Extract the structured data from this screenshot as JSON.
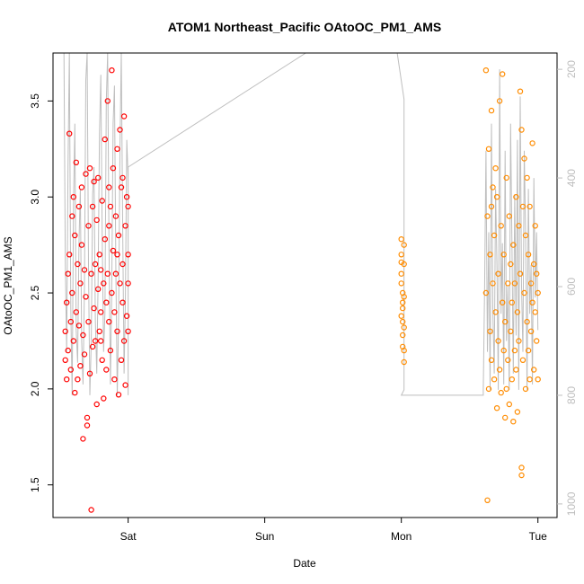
{
  "chart_data": {
    "type": "scatter",
    "title": "ATOM1 Northeast_Pacific OAtoOC_PM1_AMS",
    "xlabel": "Date",
    "ylabel": "OAtoOC_PM1_AMS",
    "x_tick_labels": [
      "Sat",
      "Sun",
      "Mon",
      "Tue"
    ],
    "x_tick_values": [
      1.0,
      2.0,
      3.0,
      4.0
    ],
    "xlim": [
      0.45,
      4.14
    ],
    "ylim": [
      1.33,
      3.75
    ],
    "y_ticks": [
      "1.5",
      "2.0",
      "2.5",
      "3.0",
      "3.5"
    ],
    "y_tick_values": [
      1.5,
      2.0,
      2.5,
      3.0,
      3.5
    ],
    "y2_ticks": [
      "200",
      "400",
      "600",
      "800",
      "1000"
    ],
    "y2_tick_values": [
      200,
      400,
      600,
      800,
      1000
    ],
    "y2lim": [
      1025,
      170
    ],
    "grid": false,
    "colors": {
      "red": "#ff0000",
      "orange": "#ff8c00",
      "altitude": "#bebebe",
      "axis": "#000000"
    },
    "series": [
      {
        "color": "#ff0000",
        "points": [
          [
            0.54,
            2.15
          ],
          [
            0.54,
            2.3
          ],
          [
            0.55,
            2.45
          ],
          [
            0.55,
            2.05
          ],
          [
            0.56,
            2.6
          ],
          [
            0.56,
            2.2
          ],
          [
            0.57,
            2.7
          ],
          [
            0.57,
            3.33
          ],
          [
            0.58,
            2.35
          ],
          [
            0.58,
            2.1
          ],
          [
            0.59,
            2.9
          ],
          [
            0.59,
            2.5
          ],
          [
            0.6,
            2.25
          ],
          [
            0.6,
            3.0
          ],
          [
            0.61,
            2.8
          ],
          [
            0.61,
            1.98
          ],
          [
            0.62,
            2.4
          ],
          [
            0.62,
            3.18
          ],
          [
            0.63,
            2.65
          ],
          [
            0.63,
            2.05
          ],
          [
            0.64,
            2.33
          ],
          [
            0.64,
            2.95
          ],
          [
            0.65,
            2.55
          ],
          [
            0.65,
            2.12
          ],
          [
            0.66,
            2.75
          ],
          [
            0.66,
            3.05
          ],
          [
            0.67,
            2.28
          ],
          [
            0.67,
            1.74
          ],
          [
            0.68,
            2.62
          ],
          [
            0.68,
            2.18
          ],
          [
            0.69,
            3.12
          ],
          [
            0.69,
            2.48
          ],
          [
            0.7,
            1.85
          ],
          [
            0.7,
            1.81
          ],
          [
            0.71,
            2.85
          ],
          [
            0.71,
            2.35
          ],
          [
            0.72,
            3.15
          ],
          [
            0.72,
            2.08
          ],
          [
            0.73,
            1.37
          ],
          [
            0.73,
            2.6
          ],
          [
            0.74,
            2.22
          ],
          [
            0.74,
            2.95
          ],
          [
            0.75,
            2.42
          ],
          [
            0.75,
            3.08
          ],
          [
            0.76,
            2.65
          ],
          [
            0.76,
            2.25
          ],
          [
            0.77,
            1.92
          ],
          [
            0.77,
            2.88
          ],
          [
            0.78,
            2.52
          ],
          [
            0.78,
            3.1
          ],
          [
            0.79,
            2.7
          ],
          [
            0.79,
            2.3
          ],
          [
            0.8,
            2.4
          ],
          [
            0.8,
            2.62
          ],
          [
            0.81,
            2.98
          ],
          [
            0.81,
            2.15
          ],
          [
            0.82,
            1.95
          ],
          [
            0.82,
            2.55
          ],
          [
            0.83,
            2.78
          ],
          [
            0.83,
            3.3
          ],
          [
            0.84,
            2.45
          ],
          [
            0.84,
            2.1
          ],
          [
            0.85,
            3.5
          ],
          [
            0.85,
            2.6
          ],
          [
            0.86,
            2.35
          ],
          [
            0.86,
            2.85
          ],
          [
            0.87,
            2.95
          ],
          [
            0.87,
            2.2
          ],
          [
            0.88,
            3.66
          ],
          [
            0.88,
            2.5
          ],
          [
            0.89,
            2.72
          ],
          [
            0.89,
            3.15
          ],
          [
            0.9,
            2.05
          ],
          [
            0.9,
            2.4
          ],
          [
            0.91,
            2.9
          ],
          [
            0.91,
            2.6
          ],
          [
            0.92,
            3.25
          ],
          [
            0.92,
            2.3
          ],
          [
            0.93,
            1.97
          ],
          [
            0.93,
            2.8
          ],
          [
            0.94,
            3.35
          ],
          [
            0.94,
            2.55
          ],
          [
            0.95,
            3.05
          ],
          [
            0.95,
            2.15
          ],
          [
            0.96,
            2.65
          ],
          [
            0.96,
            2.45
          ],
          [
            0.97,
            3.42
          ],
          [
            0.97,
            2.25
          ],
          [
            0.98,
            2.85
          ],
          [
            0.98,
            2.02
          ],
          [
            0.99,
            3.0
          ],
          [
            0.99,
            2.38
          ],
          [
            1.0,
            2.7
          ],
          [
            1.0,
            2.95
          ],
          [
            1.0,
            2.3
          ],
          [
            1.0,
            2.55
          ],
          [
            0.96,
            3.1
          ],
          [
            0.92,
            2.7
          ],
          [
            0.86,
            3.05
          ],
          [
            0.8,
            2.25
          ]
        ]
      },
      {
        "color": "#ff8c00",
        "points": [
          [
            3.0,
            2.78
          ],
          [
            3.0,
            2.7
          ],
          [
            3.0,
            2.6
          ],
          [
            3.01,
            2.5
          ],
          [
            3.01,
            2.42
          ],
          [
            3.01,
            2.35
          ],
          [
            3.01,
            2.28
          ],
          [
            3.02,
            2.2
          ],
          [
            3.02,
            2.14
          ],
          [
            3.02,
            2.75
          ],
          [
            3.02,
            2.65
          ],
          [
            3.0,
            2.55
          ],
          [
            3.01,
            2.45
          ],
          [
            3.02,
            2.32
          ],
          [
            3.0,
            2.38
          ],
          [
            3.01,
            2.22
          ],
          [
            3.02,
            2.48
          ],
          [
            3.0,
            2.66
          ],
          [
            3.62,
            3.66
          ],
          [
            3.62,
            2.5
          ],
          [
            3.63,
            2.9
          ],
          [
            3.63,
            1.42
          ],
          [
            3.64,
            3.25
          ],
          [
            3.64,
            2.0
          ],
          [
            3.65,
            2.7
          ],
          [
            3.65,
            2.3
          ],
          [
            3.66,
            3.45
          ],
          [
            3.66,
            2.15
          ],
          [
            3.67,
            3.05
          ],
          [
            3.67,
            2.55
          ],
          [
            3.68,
            2.8
          ],
          [
            3.68,
            2.05
          ],
          [
            3.69,
            3.15
          ],
          [
            3.69,
            2.4
          ],
          [
            3.7,
            3.0
          ],
          [
            3.7,
            1.9
          ],
          [
            3.71,
            2.6
          ],
          [
            3.71,
            2.25
          ],
          [
            3.72,
            3.5
          ],
          [
            3.72,
            2.1
          ],
          [
            3.73,
            2.85
          ],
          [
            3.73,
            1.98
          ],
          [
            3.74,
            3.64
          ],
          [
            3.74,
            2.45
          ],
          [
            3.75,
            2.2
          ],
          [
            3.75,
            2.7
          ],
          [
            3.76,
            1.85
          ],
          [
            3.76,
            2.35
          ],
          [
            3.77,
            3.1
          ],
          [
            3.77,
            2.0
          ],
          [
            3.78,
            2.55
          ],
          [
            3.78,
            2.15
          ],
          [
            3.79,
            2.9
          ],
          [
            3.79,
            1.92
          ],
          [
            3.8,
            2.3
          ],
          [
            3.8,
            2.65
          ],
          [
            3.81,
            2.05
          ],
          [
            3.81,
            2.45
          ],
          [
            3.82,
            2.75
          ],
          [
            3.82,
            1.83
          ],
          [
            3.83,
            2.2
          ],
          [
            3.83,
            2.55
          ],
          [
            3.84,
            3.0
          ],
          [
            3.84,
            2.1
          ],
          [
            3.85,
            2.4
          ],
          [
            3.85,
            1.88
          ],
          [
            3.86,
            2.85
          ],
          [
            3.86,
            2.25
          ],
          [
            3.87,
            3.55
          ],
          [
            3.87,
            2.6
          ],
          [
            3.88,
            3.35
          ],
          [
            3.88,
            1.55
          ],
          [
            3.89,
            2.95
          ],
          [
            3.89,
            2.15
          ],
          [
            3.9,
            3.2
          ],
          [
            3.9,
            2.5
          ],
          [
            3.91,
            2.8
          ],
          [
            3.91,
            2.0
          ],
          [
            3.92,
            3.1
          ],
          [
            3.92,
            2.35
          ],
          [
            3.93,
            2.7
          ],
          [
            3.93,
            2.2
          ],
          [
            3.94,
            2.95
          ],
          [
            3.94,
            2.05
          ],
          [
            3.95,
            2.55
          ],
          [
            3.95,
            2.3
          ],
          [
            3.96,
            3.28
          ],
          [
            3.96,
            2.45
          ],
          [
            3.97,
            2.65
          ],
          [
            3.97,
            2.1
          ],
          [
            3.98,
            2.85
          ],
          [
            3.98,
            2.4
          ],
          [
            3.99,
            2.25
          ],
          [
            3.99,
            2.6
          ],
          [
            4.0,
            2.5
          ],
          [
            4.0,
            2.05
          ],
          [
            3.88,
            1.59
          ],
          [
            3.66,
            2.95
          ]
        ]
      }
    ],
    "altitude_line": {
      "color": "#bebebe",
      "points": [
        [
          0.53,
          170
        ],
        [
          0.54,
          560
        ],
        [
          0.55,
          720
        ],
        [
          0.56,
          380
        ],
        [
          0.57,
          170
        ],
        [
          0.58,
          640
        ],
        [
          0.59,
          800
        ],
        [
          0.6,
          450
        ],
        [
          0.61,
          300
        ],
        [
          0.62,
          680
        ],
        [
          0.63,
          740
        ],
        [
          0.64,
          520
        ],
        [
          0.65,
          420
        ],
        [
          0.66,
          700
        ],
        [
          0.67,
          780
        ],
        [
          0.68,
          600
        ],
        [
          0.69,
          220
        ],
        [
          0.7,
          170
        ],
        [
          0.71,
          560
        ],
        [
          0.72,
          800
        ],
        [
          0.73,
          700
        ],
        [
          0.74,
          430
        ],
        [
          0.75,
          380
        ],
        [
          0.76,
          660
        ],
        [
          0.77,
          760
        ],
        [
          0.78,
          590
        ],
        [
          0.79,
          320
        ],
        [
          0.8,
          210
        ],
        [
          0.81,
          500
        ],
        [
          0.82,
          720
        ],
        [
          0.83,
          650
        ],
        [
          0.84,
          260
        ],
        [
          0.85,
          170
        ],
        [
          0.86,
          520
        ],
        [
          0.87,
          780
        ],
        [
          0.88,
          600
        ],
        [
          0.89,
          300
        ],
        [
          0.9,
          230
        ],
        [
          0.91,
          560
        ],
        [
          0.92,
          800
        ],
        [
          0.93,
          660
        ],
        [
          0.94,
          350
        ],
        [
          0.95,
          170
        ],
        [
          0.96,
          480
        ],
        [
          0.97,
          760
        ],
        [
          0.98,
          620
        ],
        [
          0.99,
          330
        ],
        [
          1.0,
          400
        ],
        [
          1.0,
          800
        ],
        [
          1.0,
          380
        ],
        [
          2.3,
          170
        ],
        [
          2.97,
          170
        ],
        [
          3.02,
          255
        ],
        [
          3.02,
          790
        ],
        [
          3.0,
          800
        ],
        [
          3.6,
          800
        ],
        [
          3.6,
          790
        ],
        [
          3.61,
          600
        ],
        [
          3.62,
          350
        ],
        [
          3.63,
          720
        ],
        [
          3.64,
          500
        ],
        [
          3.65,
          790
        ],
        [
          3.66,
          300
        ],
        [
          3.67,
          640
        ],
        [
          3.68,
          760
        ],
        [
          3.69,
          420
        ],
        [
          3.7,
          560
        ],
        [
          3.71,
          790
        ],
        [
          3.72,
          200
        ],
        [
          3.73,
          650
        ],
        [
          3.74,
          520
        ],
        [
          3.75,
          780
        ],
        [
          3.76,
          350
        ],
        [
          3.77,
          700
        ],
        [
          3.78,
          600
        ],
        [
          3.79,
          790
        ],
        [
          3.8,
          300
        ],
        [
          3.81,
          520
        ],
        [
          3.82,
          760
        ],
        [
          3.83,
          430
        ],
        [
          3.84,
          690
        ],
        [
          3.85,
          330
        ],
        [
          3.86,
          790
        ],
        [
          3.87,
          250
        ],
        [
          3.88,
          600
        ],
        [
          3.89,
          720
        ],
        [
          3.9,
          350
        ],
        [
          3.91,
          500
        ],
        [
          3.92,
          790
        ],
        [
          3.93,
          420
        ],
        [
          3.94,
          650
        ],
        [
          3.95,
          560
        ],
        [
          3.96,
          780
        ],
        [
          3.97,
          400
        ],
        [
          3.98,
          620
        ],
        [
          3.99,
          500
        ],
        [
          4.0,
          680
        ]
      ]
    }
  }
}
